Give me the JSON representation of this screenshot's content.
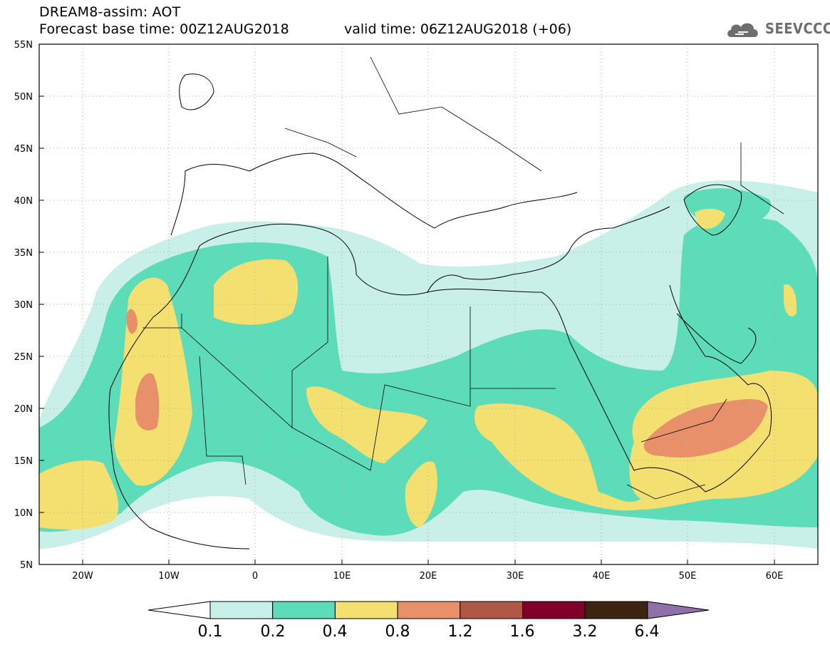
{
  "header": {
    "title": "DREAM8-assim: AOT",
    "base_time": "Forecast base time: 00Z12AUG2018",
    "valid_time": "valid time: 06Z12AUG2018 (+06)",
    "logo_text": "SEEVCCC"
  },
  "map": {
    "extent": {
      "lon_min": -25,
      "lon_max": 65,
      "lat_min": 5,
      "lat_max": 55
    },
    "lat_labels": [
      "55N",
      "50N",
      "45N",
      "40N",
      "35N",
      "30N",
      "25N",
      "20N",
      "15N",
      "10N",
      "5N"
    ],
    "lat_values": [
      55,
      50,
      45,
      40,
      35,
      30,
      25,
      20,
      15,
      10,
      5
    ],
    "lon_labels": [
      "20W",
      "10W",
      "0",
      "10E",
      "20E",
      "30E",
      "40E",
      "50E",
      "60E"
    ],
    "lon_values": [
      -20,
      -10,
      0,
      10,
      20,
      30,
      40,
      50,
      60
    ]
  },
  "colorbar": {
    "labels": [
      "0.1",
      "0.2",
      "0.4",
      "0.8",
      "1.2",
      "1.6",
      "3.2",
      "6.4"
    ],
    "colors": [
      "#c8f0e8",
      "#5cdcb8",
      "#f4e070",
      "#e8906a",
      "#b05848",
      "#80002a",
      "#3c2410",
      "#9070a8"
    ],
    "under_color": "#ffffff",
    "over_color": "#9070a8"
  }
}
